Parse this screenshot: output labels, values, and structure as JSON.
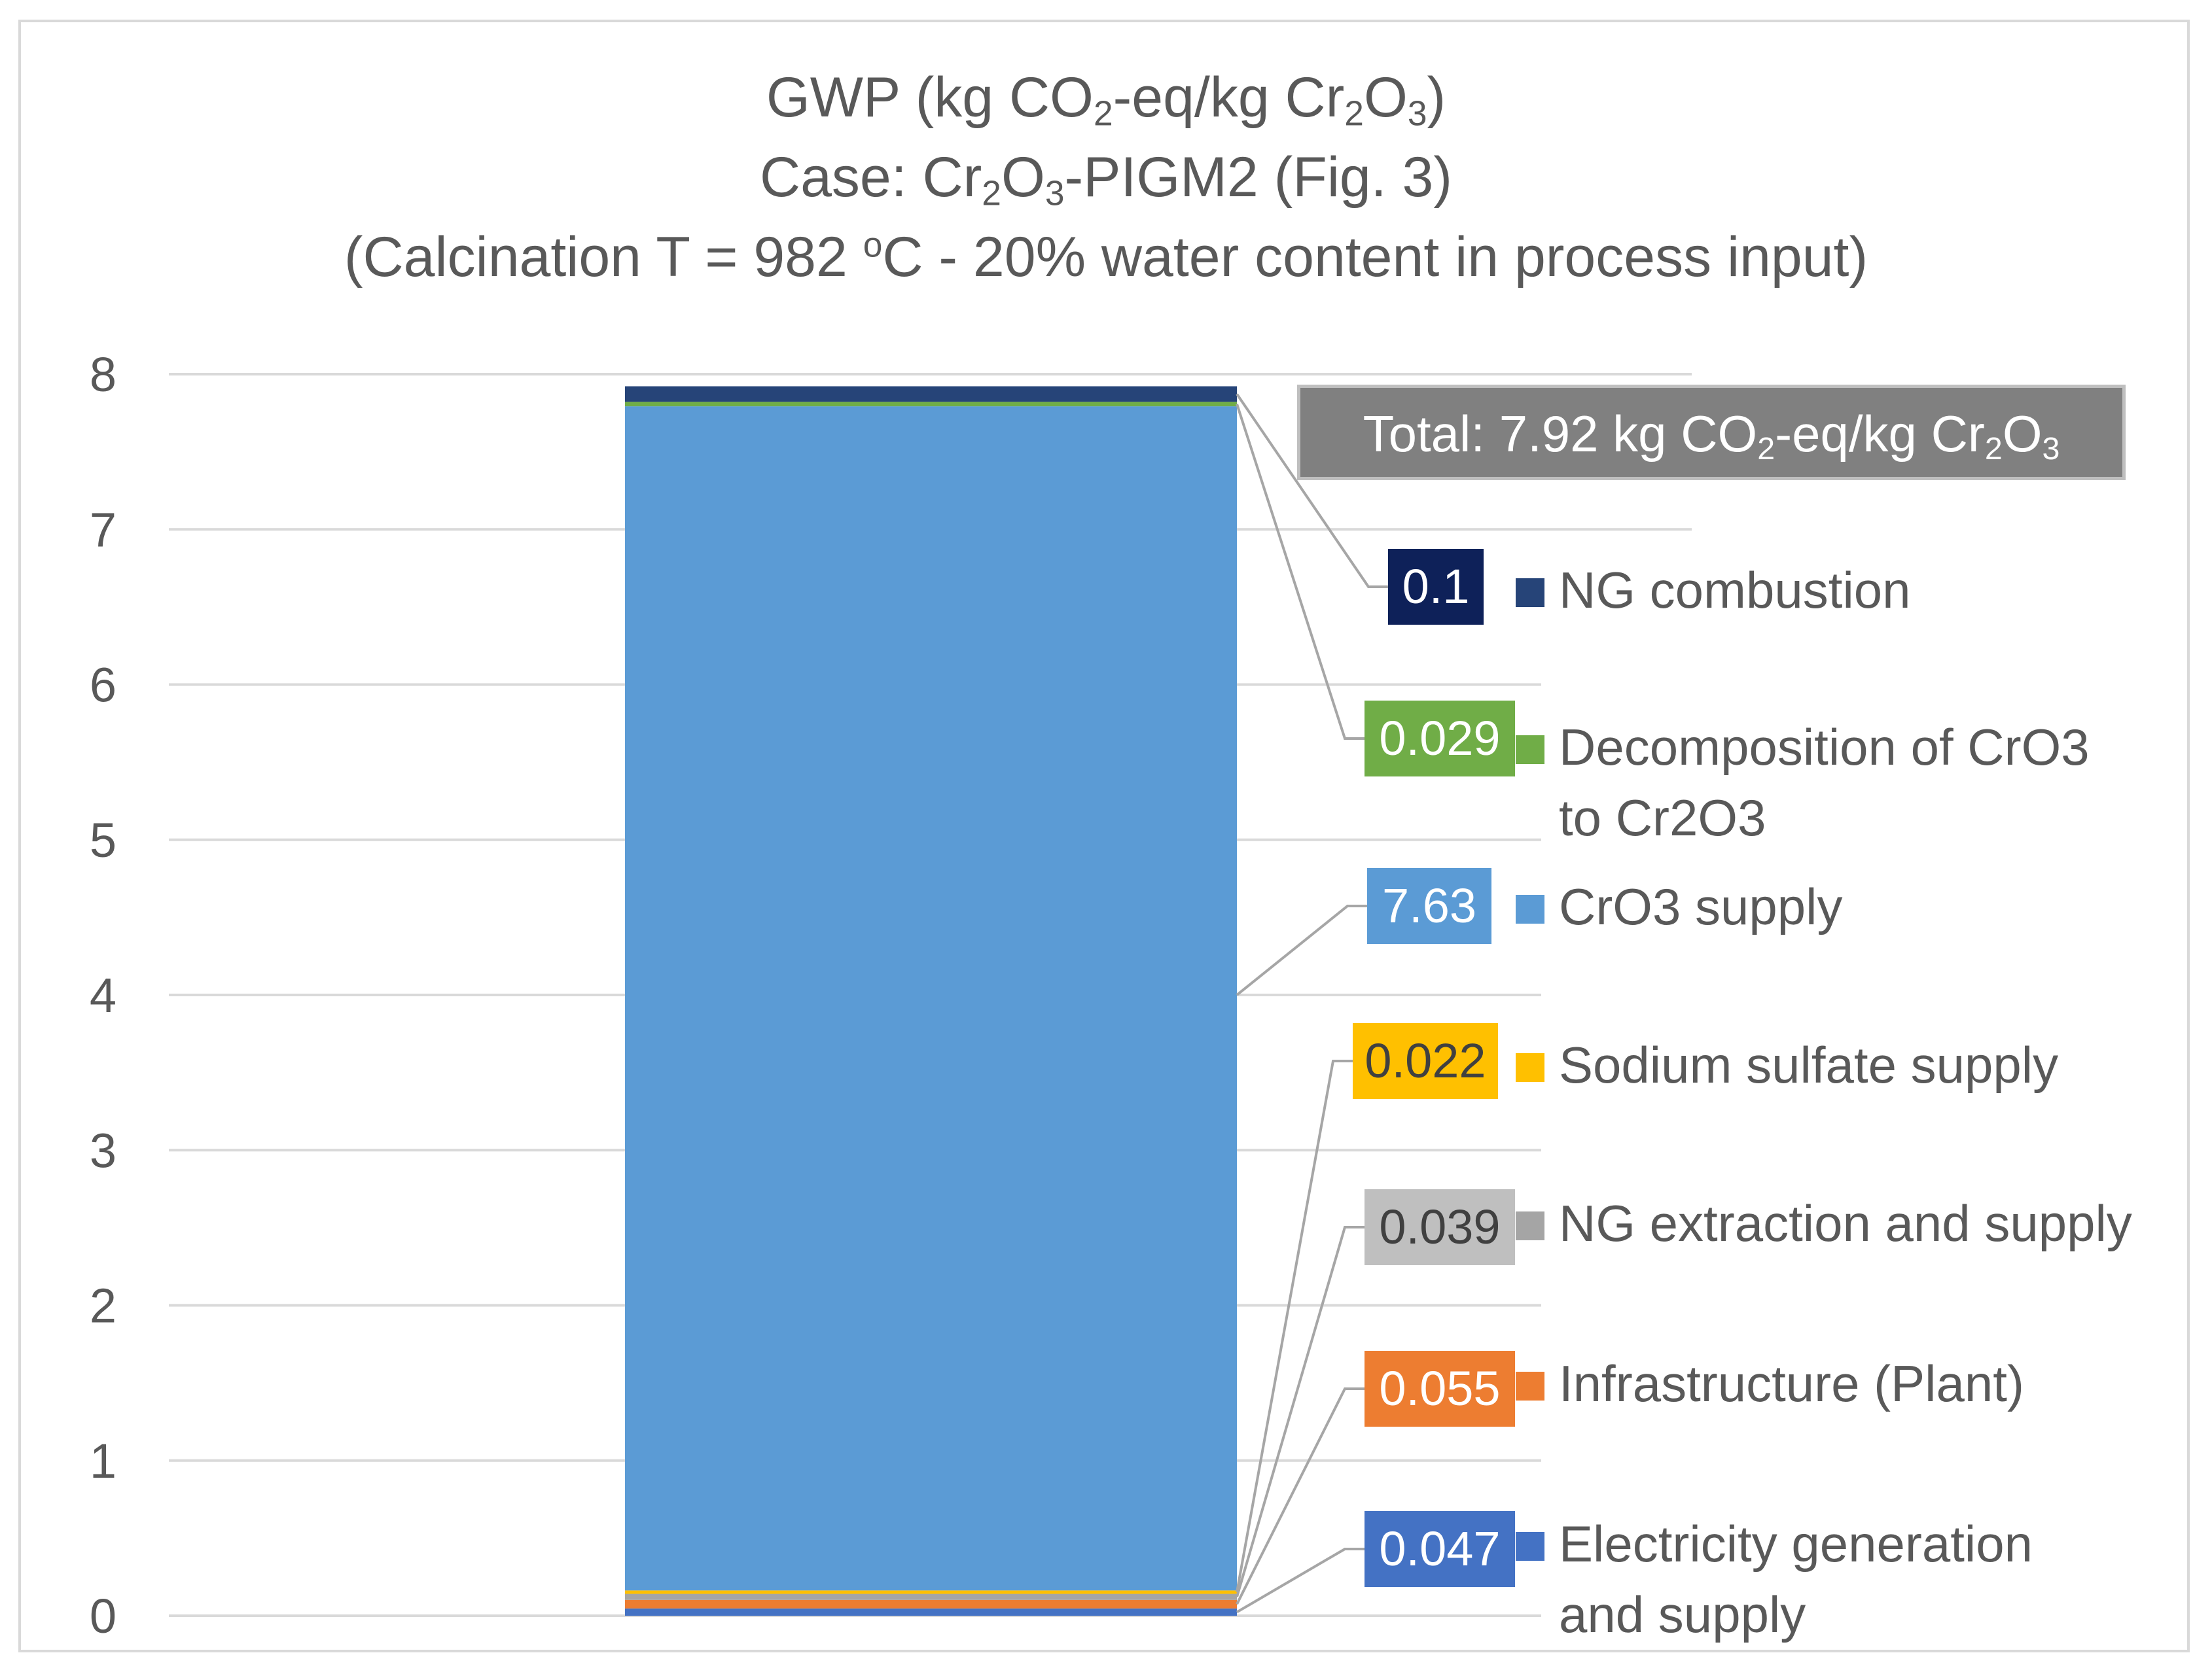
{
  "chart_data": {
    "type": "bar",
    "stacked": true,
    "title_lines": [
      "GWP (kg CO2-eq/kg Cr2O3)",
      "Case: Cr2O3-PIGM2 (Fig. 3)",
      "(Calcination T = 982 oC - 20% water content in process input)"
    ],
    "title": {
      "gwp": "GWP (kg CO",
      "co2_sub": "2",
      "eq_text": "-eq/kg Cr",
      "cr_sub": "2",
      "o_text": "O",
      "o_sub": "3",
      "close": ")",
      "case_prefix": "Case: Cr",
      "case_sub1": "2",
      "case_o": "O",
      "case_sub2": "3",
      "case_suffix": "-PIGM2 (Fig. 3)",
      "calc_prefix": "(Calcination T = 982 ",
      "calc_sup": "o",
      "calc_suffix": "C - 20% water content in process input)"
    },
    "ylim": [
      0,
      8
    ],
    "yticks": [
      0,
      1,
      2,
      3,
      4,
      5,
      6,
      7,
      8
    ],
    "ytick_labels": [
      "0",
      "1",
      "2",
      "3",
      "4",
      "5",
      "6",
      "7",
      "8"
    ],
    "grid": true,
    "legend_position": "right",
    "total_label": {
      "prefix": "Total: 7.92 kg CO",
      "sub1": "2",
      "mid": "-eq/kg Cr",
      "sub2": "2",
      "o": "O",
      "sub3": "3"
    },
    "total_value": 7.92,
    "series": [
      {
        "name": "Electricity generation\nand supply",
        "value": 0.047,
        "label": "0.047",
        "color": "#4472c4",
        "label_bg": "#4472c4",
        "label_fg": "#ffffff"
      },
      {
        "name": "Infrastructure (Plant)",
        "value": 0.055,
        "label": "0.055",
        "color": "#ed7d31",
        "label_bg": "#ed7d31",
        "label_fg": "#ffffff"
      },
      {
        "name": "NG extraction and supply",
        "value": 0.039,
        "label": "0.039",
        "color": "#a5a5a5",
        "label_bg": "#bfbfbf",
        "label_fg": "#404040"
      },
      {
        "name": "Sodium sulfate supply",
        "value": 0.022,
        "label": "0.022",
        "color": "#ffc000",
        "label_bg": "#ffc000",
        "label_fg": "#404040"
      },
      {
        "name": "CrO3 supply",
        "value": 7.63,
        "label": "7.63",
        "color": "#5b9bd5",
        "label_bg": "#5b9bd5",
        "label_fg": "#ffffff"
      },
      {
        "name": "Decomposition of CrO3\nto Cr2O3",
        "value": 0.029,
        "label": "0.029",
        "color": "#70ad47",
        "label_bg": "#70ad47",
        "label_fg": "#ffffff"
      },
      {
        "name": "NG combustion",
        "value": 0.1,
        "label": "0.1",
        "color": "#264478",
        "label_bg": "#0e2159",
        "label_fg": "#ffffff"
      }
    ]
  }
}
